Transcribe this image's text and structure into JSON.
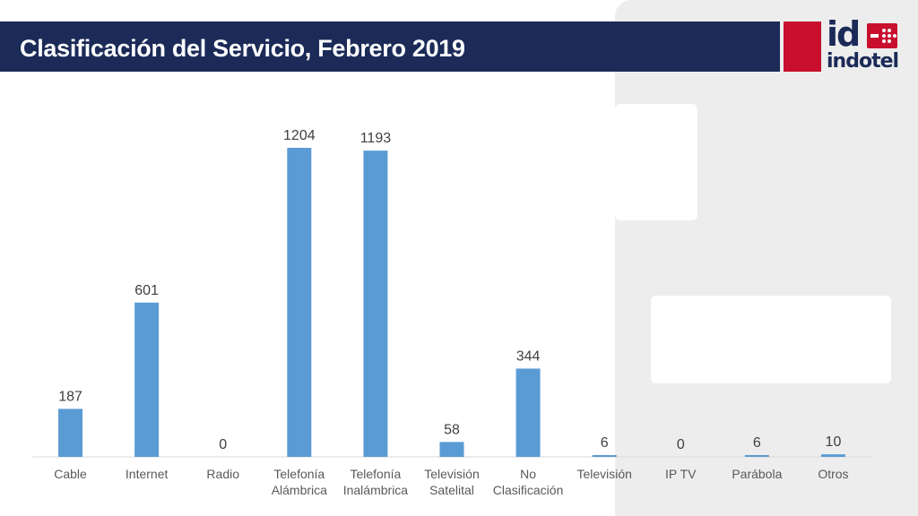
{
  "header": {
    "title": "Clasificación del Servicio, Febrero 2019"
  },
  "logo": {
    "mark": "id",
    "word": "indotel"
  },
  "colors": {
    "header_bg": "#1b2a57",
    "bar": "#5b9bd5",
    "logo_red": "#c8102e"
  },
  "chart_data": {
    "type": "bar",
    "categories": [
      [
        "Cable"
      ],
      [
        "Internet"
      ],
      [
        "Radio"
      ],
      [
        "Telefonía",
        "Alámbrica"
      ],
      [
        "Telefonía",
        "Inalámbrica"
      ],
      [
        "Televisión",
        "Satelital"
      ],
      [
        "No",
        "Clasificación"
      ],
      [
        "Televisión"
      ],
      [
        "IP TV"
      ],
      [
        "Parábola"
      ],
      [
        "Otros"
      ]
    ],
    "values": [
      187,
      601,
      0,
      1204,
      1193,
      58,
      344,
      6,
      0,
      6,
      10
    ],
    "ylim": [
      0,
      1204
    ],
    "grid": false,
    "legend": "none"
  }
}
